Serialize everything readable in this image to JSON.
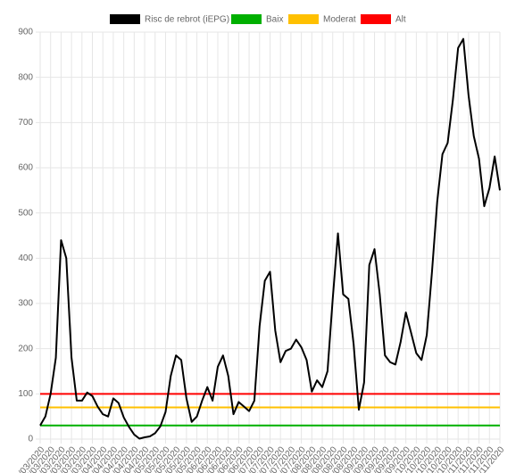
{
  "chart_data": {
    "type": "line",
    "categories": [
      "01/03/2020",
      null,
      "07/03/2020",
      null,
      "13/03/2020",
      null,
      "19/03/2020",
      null,
      "25/03/2020",
      null,
      "31/03/2020",
      null,
      "06/04/2020",
      null,
      "12/04/2020",
      null,
      "18/04/2020",
      null,
      "24/04/2020",
      null,
      "30/04/2020",
      null,
      "06/05/2020",
      null,
      "12/05/2020",
      null,
      "18/05/2020",
      null,
      "24/05/2020",
      null,
      "30/05/2020",
      null,
      "05/06/2020",
      null,
      "11/06/2020",
      null,
      "17/06/2020",
      null,
      "23/06/2020",
      null,
      "29/06/2020",
      null,
      "05/07/2020",
      null,
      "11/07/2020",
      null,
      "17/07/2020",
      null,
      "23/07/2020",
      null,
      "29/07/2020",
      null,
      "04/08/2020",
      null,
      "10/08/2020",
      null,
      "16/08/2020",
      null,
      "22/08/2020",
      null,
      "28/08/2020",
      null,
      "03/09/2020",
      null,
      "09/09/2020",
      null,
      "15/09/2020",
      null,
      "21/09/2020",
      null,
      "27/09/2020",
      null,
      "03/10/2020",
      null,
      "09/10/2020",
      null,
      "15/10/2020",
      null,
      "21/10/2020",
      null,
      "27/10/2020",
      null,
      "02/11/2020",
      null,
      "08/11/2020",
      null,
      "14/11/2020",
      null,
      "20/11/2020"
    ],
    "series": [
      {
        "name": "Risc de rebrot (iEPG)",
        "color": "#000000",
        "values": [
          30,
          50,
          100,
          180,
          440,
          400,
          180,
          85,
          85,
          103,
          95,
          72,
          55,
          50,
          90,
          80,
          48,
          27,
          10,
          1,
          4,
          6,
          13,
          28,
          60,
          140,
          185,
          175,
          90,
          38,
          50,
          85,
          115,
          85,
          160,
          185,
          140,
          55,
          82,
          72,
          62,
          85,
          250,
          350,
          370,
          240,
          170,
          195,
          200,
          220,
          203,
          175,
          105,
          130,
          115,
          150,
          310,
          455,
          320,
          310,
          210,
          65,
          125,
          385,
          420,
          320,
          185,
          170,
          165,
          215,
          280,
          235,
          190,
          175,
          230,
          370,
          525,
          630,
          655,
          750,
          865,
          885,
          760,
          670,
          620,
          515,
          555,
          625,
          550
        ]
      }
    ],
    "reference_lines": [
      {
        "name": "Baix",
        "color": "#00b000",
        "value": 30
      },
      {
        "name": "Moderat",
        "color": "#ffc000",
        "value": 70
      },
      {
        "name": "Alt",
        "color": "#ff0000",
        "value": 100
      }
    ],
    "ylim": [
      0,
      900
    ],
    "yticks": [
      0,
      100,
      200,
      300,
      400,
      500,
      600,
      700,
      800,
      900
    ],
    "grid": true
  }
}
